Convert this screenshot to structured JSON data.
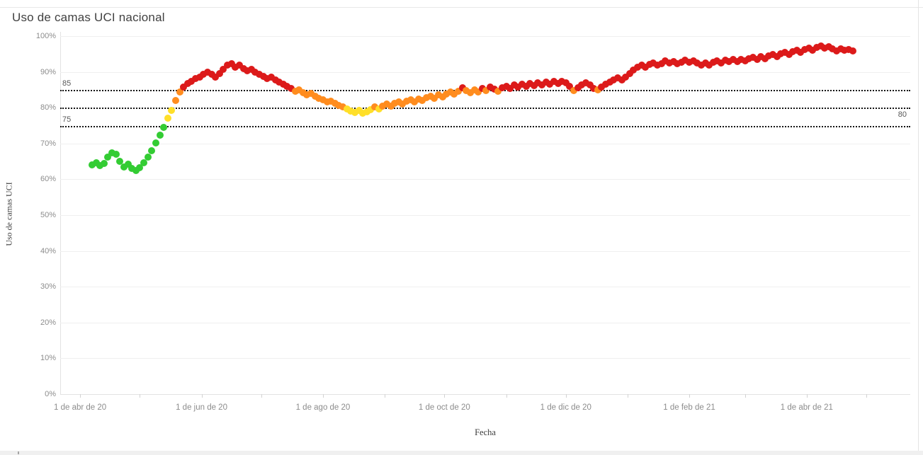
{
  "window": {
    "title": "Uso de camas UCI nacional"
  },
  "chart_data": {
    "type": "scatter",
    "title": "Uso de camas UCI nacional",
    "xlabel": "Fecha",
    "ylabel": "Uso de camas UCI",
    "grid": "horizontal-only",
    "legend": "none",
    "y_axis": {
      "min": 0,
      "max": 100,
      "tick_labels": [
        "0%",
        "10%",
        "20%",
        "30%",
        "40%",
        "50%",
        "60%",
        "70%",
        "80%",
        "90%",
        "100%"
      ]
    },
    "x_axis": {
      "start_date": "2020-03-22",
      "end_date": "2021-05-23",
      "month_ticks": [
        {
          "date": "2020-04-01",
          "label": "1 de abr de 20"
        },
        {
          "date": "2020-05-01",
          "label": ""
        },
        {
          "date": "2020-06-01",
          "label": "1 de jun de 20"
        },
        {
          "date": "2020-07-01",
          "label": ""
        },
        {
          "date": "2020-08-01",
          "label": "1 de ago de 20"
        },
        {
          "date": "2020-09-01",
          "label": ""
        },
        {
          "date": "2020-10-01",
          "label": "1 de oct de 20"
        },
        {
          "date": "2020-11-01",
          "label": ""
        },
        {
          "date": "2020-12-01",
          "label": "1 de dic de 20"
        },
        {
          "date": "2021-01-01",
          "label": ""
        },
        {
          "date": "2021-02-01",
          "label": "1 de feb de 21"
        },
        {
          "date": "2021-03-01",
          "label": ""
        },
        {
          "date": "2021-04-01",
          "label": "1 de abr de 21"
        },
        {
          "date": "2021-05-01",
          "label": ""
        }
      ]
    },
    "reference_lines": [
      {
        "value": 85,
        "label": "85",
        "label_side": "left",
        "label_position": "above"
      },
      {
        "value": 80,
        "label": "80",
        "label_side": "right",
        "label_position": "below"
      },
      {
        "value": 75,
        "label": "75",
        "label_side": "left",
        "label_position": "above"
      }
    ],
    "color_rules": {
      "description": "dot color by % ICU occupancy",
      "bands": [
        {
          "max": 75,
          "color": "#33cc33",
          "name": "green"
        },
        {
          "max": 80,
          "color": "#ffdf29",
          "name": "yellow"
        },
        {
          "max": 85,
          "color": "#ff8c1e",
          "name": "orange"
        },
        {
          "max": 101,
          "color": "#dc1a1a",
          "name": "red"
        }
      ]
    },
    "series": {
      "name": "Uso de camas UCI (%)",
      "start_date": "2020-04-07",
      "interval_days": 2,
      "values": [
        64.0,
        64.6,
        63.8,
        64.4,
        66.3,
        67.4,
        66.9,
        65.0,
        63.5,
        64.3,
        63.0,
        62.4,
        63.2,
        64.6,
        66.2,
        68.0,
        70.1,
        72.4,
        74.6,
        77.0,
        79.3,
        82.0,
        84.3,
        85.8,
        86.8,
        87.4,
        88.1,
        88.6,
        89.4,
        90.0,
        89.3,
        88.6,
        89.6,
        90.8,
        91.8,
        92.3,
        91.4,
        91.9,
        91.0,
        90.4,
        90.8,
        90.0,
        89.4,
        88.8,
        88.2,
        88.6,
        87.8,
        87.2,
        86.6,
        86.0,
        85.4,
        84.6,
        84.9,
        84.2,
        83.6,
        83.9,
        83.2,
        82.6,
        82.2,
        81.6,
        81.9,
        81.2,
        80.7,
        80.2,
        79.6,
        79.0,
        78.6,
        79.2,
        78.4,
        78.9,
        79.5,
        80.3,
        79.7,
        80.5,
        81.0,
        80.4,
        81.2,
        81.7,
        81.1,
        81.9,
        82.3,
        81.6,
        82.5,
        82.0,
        82.8,
        83.3,
        82.7,
        83.5,
        83.0,
        83.8,
        84.3,
        83.7,
        84.6,
        85.6,
        84.8,
        84.2,
        84.9,
        84.4,
        85.3,
        84.7,
        85.8,
        85.2,
        84.6,
        85.5,
        86.0,
        85.4,
        86.3,
        85.7,
        86.5,
        86.0,
        86.8,
        86.2,
        87.0,
        86.4,
        87.2,
        86.6,
        87.3,
        86.8,
        87.4,
        86.9,
        85.9,
        84.8,
        85.6,
        86.4,
        87.0,
        86.4,
        85.3,
        84.9,
        85.8,
        86.6,
        87.2,
        87.8,
        88.4,
        87.8,
        88.6,
        89.6,
        90.6,
        91.4,
        91.9,
        91.3,
        92.0,
        92.5,
        91.8,
        92.3,
        93.0,
        92.4,
        92.9,
        92.2,
        92.7,
        93.2,
        92.6,
        93.1,
        92.5,
        91.9,
        92.4,
        91.8,
        92.6,
        93.1,
        92.5,
        93.3,
        92.8,
        93.4,
        92.9,
        93.5,
        93.0,
        93.6,
        94.1,
        93.5,
        94.2,
        93.7,
        94.4,
        94.9,
        94.3,
        95.0,
        95.5,
        94.9,
        95.6,
        96.1,
        95.5,
        96.2,
        96.6,
        96.0,
        96.8,
        97.2,
        96.6,
        97.0,
        96.4,
        95.8,
        96.5,
        96.0,
        96.3,
        95.9
      ]
    }
  }
}
